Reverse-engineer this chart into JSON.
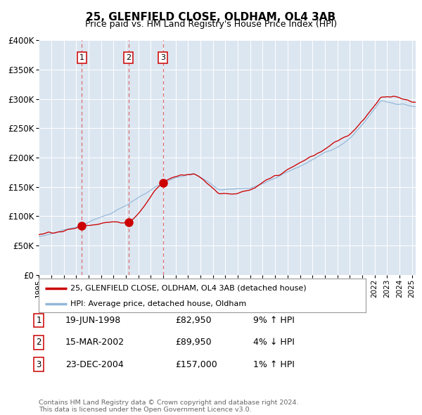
{
  "title": "25, GLENFIELD CLOSE, OLDHAM, OL4 3AB",
  "subtitle": "Price paid vs. HM Land Registry's House Price Index (HPI)",
  "legend_label_red": "25, GLENFIELD CLOSE, OLDHAM, OL4 3AB (detached house)",
  "legend_label_blue": "HPI: Average price, detached house, Oldham",
  "footer": "Contains HM Land Registry data © Crown copyright and database right 2024.\nThis data is licensed under the Open Government Licence v3.0.",
  "sales": [
    {
      "label": "1",
      "date": "19-JUN-1998",
      "price": "£82,950",
      "hpi_pct": "9%",
      "hpi_dir": "↑"
    },
    {
      "label": "2",
      "date": "15-MAR-2002",
      "price": "£89,950",
      "hpi_pct": "4%",
      "hpi_dir": "↓"
    },
    {
      "label": "3",
      "date": "23-DEC-2004",
      "price": "£157,000",
      "hpi_pct": "1%",
      "hpi_dir": "↑"
    }
  ],
  "sale_years": [
    1998.46,
    2002.2,
    2004.97
  ],
  "sale_prices": [
    82950,
    89950,
    157000
  ],
  "ylim": [
    0,
    400000
  ],
  "yticks": [
    0,
    50000,
    100000,
    150000,
    200000,
    250000,
    300000,
    350000,
    400000
  ],
  "xlim_start": 1995.0,
  "xlim_end": 2025.3,
  "bg_color": "#dce6f1",
  "red_color": "#cc0000",
  "blue_color": "#92b8d8",
  "marker_color": "#cc0000",
  "vline_color": "#dd4444",
  "box_edgecolor": "#cc0000",
  "grid_color": "#ffffff"
}
